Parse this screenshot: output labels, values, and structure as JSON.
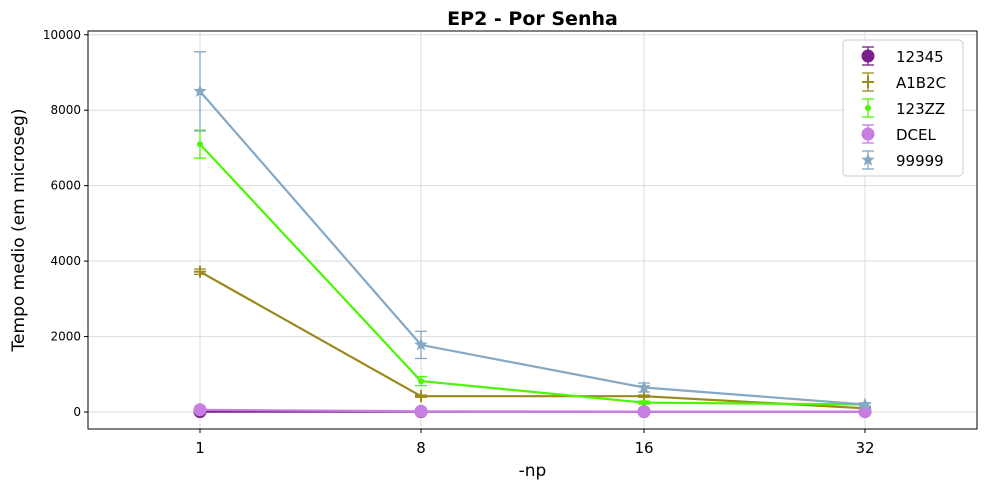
{
  "chart_data": {
    "type": "line",
    "title": "EP2 - Por Senha",
    "xlabel": "-np",
    "ylabel": "Tempo medio (em microseg)",
    "categories": [
      "1",
      "8",
      "16",
      "32"
    ],
    "ylim": [
      -450,
      10100
    ],
    "yticks": [
      "0",
      "2000",
      "4000",
      "6000",
      "8000",
      "10000"
    ],
    "grid": true,
    "legend_position": "top-right",
    "series": [
      {
        "name": "12345",
        "color": "#7b1f8c",
        "marker": "circle-large",
        "values": [
          10,
          10,
          10,
          10
        ],
        "errors": [
          10,
          10,
          10,
          10
        ]
      },
      {
        "name": "A1B2C",
        "color": "#9a8a1e",
        "marker": "plus",
        "values": [
          3720,
          420,
          420,
          100
        ],
        "errors": [
          70,
          30,
          30,
          20
        ]
      },
      {
        "name": "123ZZ",
        "color": "#4bf505",
        "marker": "circle-small",
        "values": [
          7100,
          820,
          250,
          200
        ],
        "errors": [
          370,
          120,
          40,
          40
        ]
      },
      {
        "name": "DCEL",
        "color": "#c77ee0",
        "marker": "circle-large",
        "values": [
          60,
          20,
          10,
          10
        ],
        "errors": [
          10,
          10,
          10,
          10
        ]
      },
      {
        "name": "99999",
        "color": "#85a8c4",
        "marker": "star",
        "values": [
          8500,
          1780,
          650,
          200
        ],
        "errors": [
          1050,
          360,
          120,
          40
        ]
      }
    ]
  }
}
